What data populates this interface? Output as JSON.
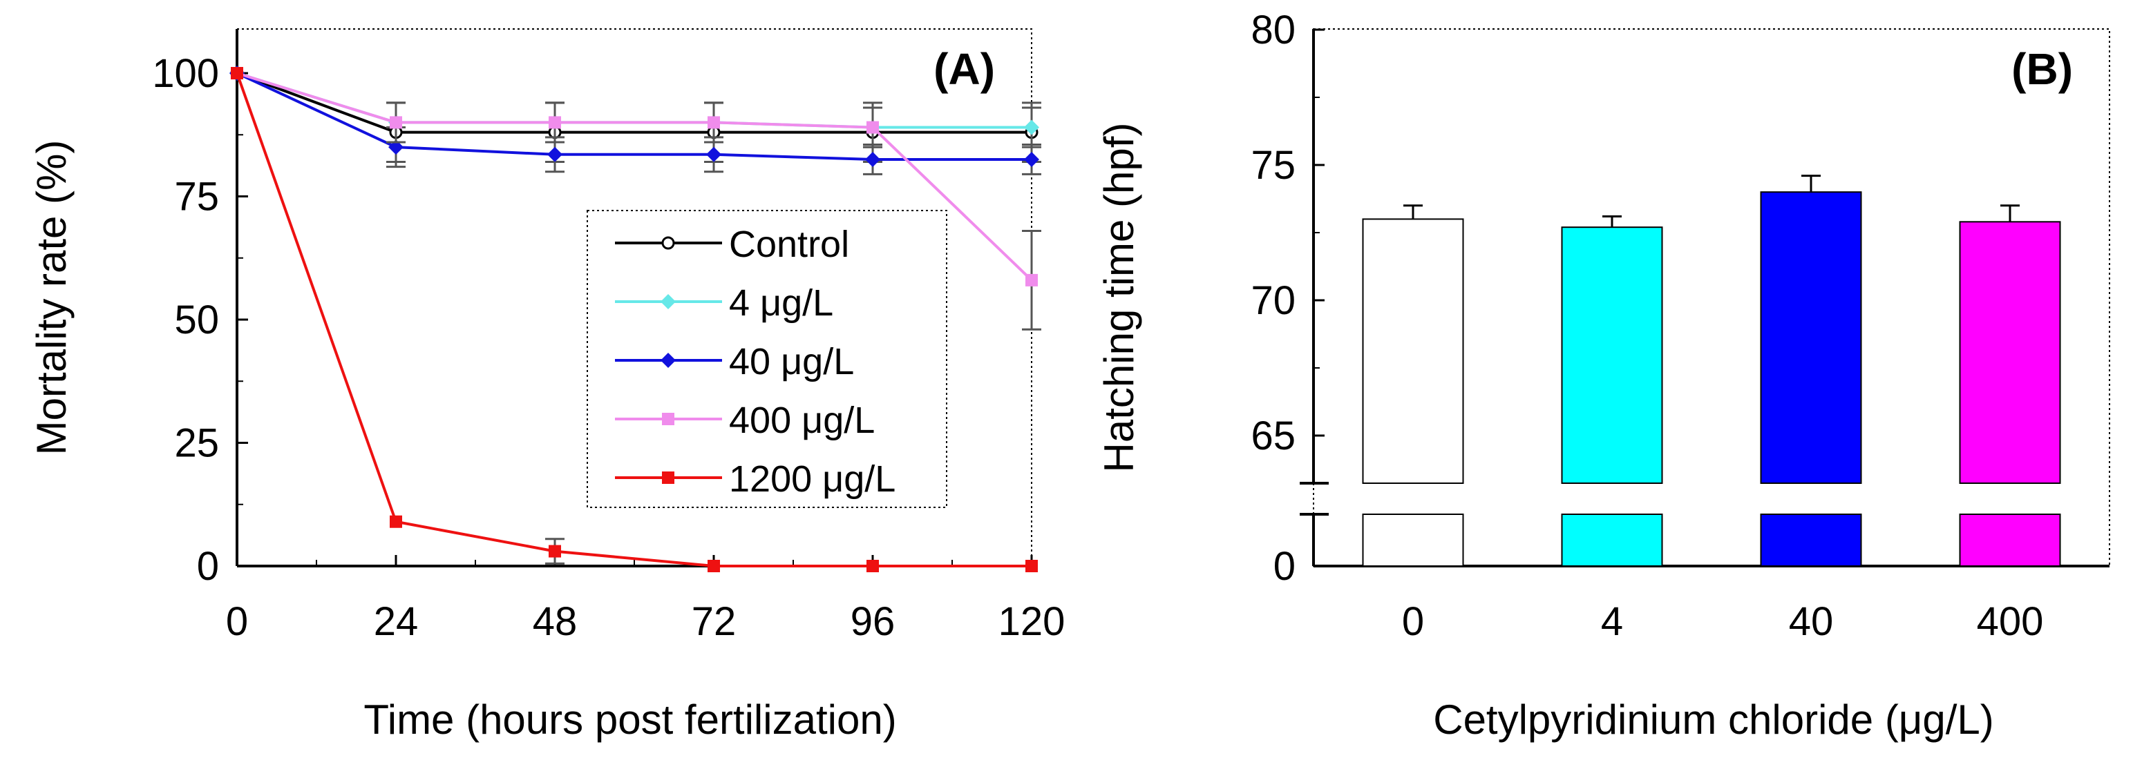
{
  "chart_data": [
    {
      "type": "line",
      "panel_label": "(A)",
      "xlabel": "Time (hours post fertilization)",
      "ylabel": "Mortality rate (%)",
      "x": [
        0,
        24,
        48,
        72,
        96,
        120
      ],
      "x_ticks": [
        "0",
        "24",
        "48",
        "72",
        "96",
        "120"
      ],
      "y_ticks": [
        "0",
        "25",
        "50",
        "75",
        "100"
      ],
      "xlim": [
        0,
        120
      ],
      "ylim": [
        0,
        110
      ],
      "grid": false,
      "legend_position": "center-right",
      "series": [
        {
          "name": "Control",
          "values": [
            100,
            88,
            88,
            88,
            88,
            88
          ],
          "errors": [
            0,
            6,
            6,
            6,
            6,
            6
          ],
          "color": "#000000",
          "marker": "open-circle"
        },
        {
          "name": "4 μg/L",
          "values": [
            100,
            90,
            90,
            90,
            89,
            89
          ],
          "errors": [
            0,
            4,
            4,
            4,
            4,
            4
          ],
          "color": "#66E8E8",
          "marker": "diamond"
        },
        {
          "name": "40 μg/L",
          "values": [
            100,
            85,
            83.5,
            83.5,
            82.5,
            82.5
          ],
          "errors": [
            0,
            4,
            3.5,
            3.5,
            3,
            3
          ],
          "color": "#1111DD",
          "marker": "diamond"
        },
        {
          "name": "400 μg/L",
          "values": [
            100,
            90,
            90,
            90,
            89,
            58
          ],
          "errors": [
            0,
            4,
            4,
            4,
            4,
            10
          ],
          "color": "#F08CEC",
          "marker": "square"
        },
        {
          "name": "1200 μg/L",
          "values": [
            100,
            9,
            3,
            0,
            0,
            0
          ],
          "errors": [
            0,
            0,
            2.5,
            0,
            0,
            0
          ],
          "color": "#EE1111",
          "marker": "square"
        }
      ]
    },
    {
      "type": "bar",
      "panel_label": "(B)",
      "xlabel": "Cetylpyridinium  chloride (μg/L)",
      "ylabel": "Hatching time (hpf)",
      "categories": [
        "0",
        "4",
        "40",
        "400"
      ],
      "values": [
        73,
        72.7,
        74,
        72.9
      ],
      "errors": [
        0.5,
        0.4,
        0.6,
        0.6
      ],
      "colors": [
        "#FFFFFF",
        "#00FFFF",
        "#0000FF",
        "#FF00FF"
      ],
      "y_ticks": [
        "0",
        "65",
        "70",
        "75",
        "80"
      ],
      "ylim": [
        63,
        80
      ],
      "y_axis_break": true,
      "grid": false
    }
  ]
}
